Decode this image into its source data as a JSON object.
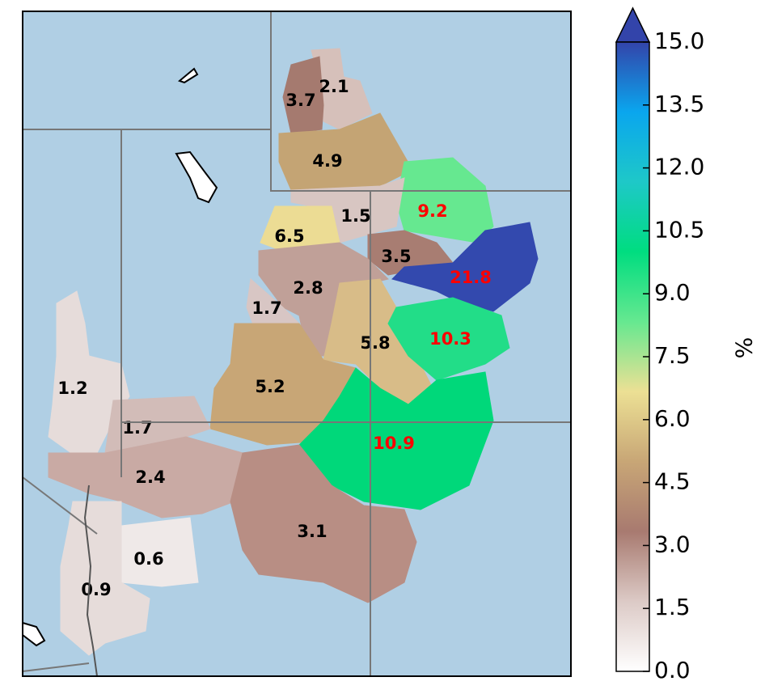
{
  "map": {
    "regions": [
      {
        "value": 2.1,
        "color": "#d6c0ba",
        "label_color": "#000000"
      },
      {
        "value": 3.7,
        "color": "#a57a6f",
        "label_color": "#000000"
      },
      {
        "value": 4.9,
        "color": "#c4a474",
        "label_color": "#000000"
      },
      {
        "value": 9.2,
        "color": "#66e890",
        "label_color": "#ff0000"
      },
      {
        "value": 1.5,
        "color": "#d8c6c2",
        "label_color": "#000000"
      },
      {
        "value": 6.5,
        "color": "#ecdc94",
        "label_color": "#000000"
      },
      {
        "value": 3.5,
        "color": "#a87d72",
        "label_color": "#000000"
      },
      {
        "value": 21.8,
        "color": "#3349ae",
        "label_color": "#ff0000"
      },
      {
        "value": 2.8,
        "color": "#c0a098",
        "label_color": "#000000"
      },
      {
        "value": 1.7,
        "color": "#d8c6c4",
        "label_color": "#000000"
      },
      {
        "value": 5.8,
        "color": "#d8bc88",
        "label_color": "#000000"
      },
      {
        "value": 10.3,
        "color": "#22dd88",
        "label_color": "#ff0000"
      },
      {
        "value": 1.2,
        "color": "#e6dcda",
        "label_color": "#000000"
      },
      {
        "value": 5.2,
        "color": "#c8a676",
        "label_color": "#000000"
      },
      {
        "value": 1.7,
        "color": "#d2bcb8",
        "label_color": "#000000"
      },
      {
        "value": 10.9,
        "color": "#00d87a",
        "label_color": "#ff0000"
      },
      {
        "value": 2.4,
        "color": "#c9aaa4",
        "label_color": "#000000"
      },
      {
        "value": 3.1,
        "color": "#b88e84",
        "label_color": "#000000"
      },
      {
        "value": 0.6,
        "color": "#efe9e8",
        "label_color": "#000000"
      },
      {
        "value": 0.9,
        "color": "#e6dcda",
        "label_color": "#000000"
      }
    ],
    "colorbar": {
      "label": "%",
      "lim": [
        0,
        15
      ],
      "ticks": [
        {
          "value": 0,
          "label": "0.0"
        },
        1.5,
        {
          "value": 3,
          "label": "3.0"
        },
        4.5,
        {
          "value": 6,
          "label": "6.0"
        },
        7.5,
        {
          "value": 9,
          "label": "9.0"
        },
        10.5,
        {
          "value": 12,
          "label": "12.0"
        },
        13.5,
        {
          "value": 15,
          "label": "15.0"
        }
      ],
      "colors": [
        "#ffffff",
        "#dccac6",
        "#a87a70",
        "#c8a676",
        "#ece094",
        "#66e890",
        "#00dd80",
        "#1ec8c8",
        "#0aa6ee",
        "#3344aa"
      ]
    }
  }
}
